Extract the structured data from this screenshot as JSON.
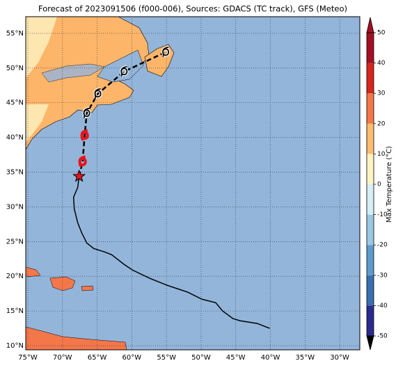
{
  "chart_data": {
    "type": "map",
    "title": "Forecast of 2023091506 (f000-006), Sources: GDACS (TC track), GFS (Meteo)",
    "xlim": [
      -75.3,
      -27.1
    ],
    "ylim": [
      9.4,
      57.4
    ],
    "xticks": [
      {
        "value": -75,
        "label": "75°W"
      },
      {
        "value": -70,
        "label": "70°W"
      },
      {
        "value": -65,
        "label": "65°W"
      },
      {
        "value": -60,
        "label": "60°W"
      },
      {
        "value": -55,
        "label": "55°W"
      },
      {
        "value": -50,
        "label": "50°W"
      },
      {
        "value": -45,
        "label": "45°W"
      },
      {
        "value": -40,
        "label": "40°W"
      },
      {
        "value": -35,
        "label": "35°W"
      },
      {
        "value": -30,
        "label": "30°W"
      }
    ],
    "yticks": [
      {
        "value": 10,
        "label": "10°N"
      },
      {
        "value": 15,
        "label": "15°N"
      },
      {
        "value": 20,
        "label": "20°N"
      },
      {
        "value": 25,
        "label": "25°N"
      },
      {
        "value": 30,
        "label": "30°N"
      },
      {
        "value": 35,
        "label": "35°N"
      },
      {
        "value": 40,
        "label": "40°N"
      },
      {
        "value": 45,
        "label": "45°N"
      },
      {
        "value": 50,
        "label": "50°N"
      },
      {
        "value": 55,
        "label": "55°N"
      }
    ],
    "grid": true,
    "track_past": {
      "lon": [
        -40.1,
        -41.9,
        -44.4,
        -45.4,
        -46.9,
        -47.9,
        -49.9,
        -51.9,
        -54.9,
        -57.4,
        -59.9,
        -61.1,
        -62.9,
        -63.9,
        -65.5,
        -66.5,
        -67.2,
        -67.8,
        -68.3,
        -68.4,
        -67.8,
        -67.6
      ],
      "lat": [
        12.5,
        13.2,
        13.6,
        13.9,
        15.0,
        16.2,
        16.7,
        17.7,
        18.7,
        19.7,
        20.9,
        21.7,
        23.1,
        23.5,
        24.0,
        24.8,
        26.2,
        27.7,
        29.7,
        31.4,
        32.8,
        34.4
      ]
    },
    "track_forecast": {
      "lon": [
        -67.6,
        -67.1,
        -66.8,
        -66.5,
        -64.9,
        -61.1,
        -55.1
      ],
      "lat": [
        34.4,
        36.5,
        40.3,
        43.5,
        46.3,
        49.5,
        52.3
      ],
      "marker_colors": [
        "#e8141c",
        "#e8141c",
        "#e8141c",
        "#000000",
        "#000000",
        "#000000",
        "#000000"
      ]
    },
    "colorbar": {
      "label": "Max Temperature (°C)",
      "lim": [
        -50,
        50
      ],
      "ticks": [
        -50,
        -40,
        -30,
        -20,
        -10,
        0,
        10,
        20,
        30,
        40,
        50
      ],
      "colors": [
        "#2b2a8e",
        "#3a6fb0",
        "#5f9acb",
        "#9ac8e0",
        "#d6eef5",
        "#fff3c4",
        "#fdbd6e",
        "#f4764a",
        "#d7261e",
        "#a50f24"
      ]
    }
  }
}
